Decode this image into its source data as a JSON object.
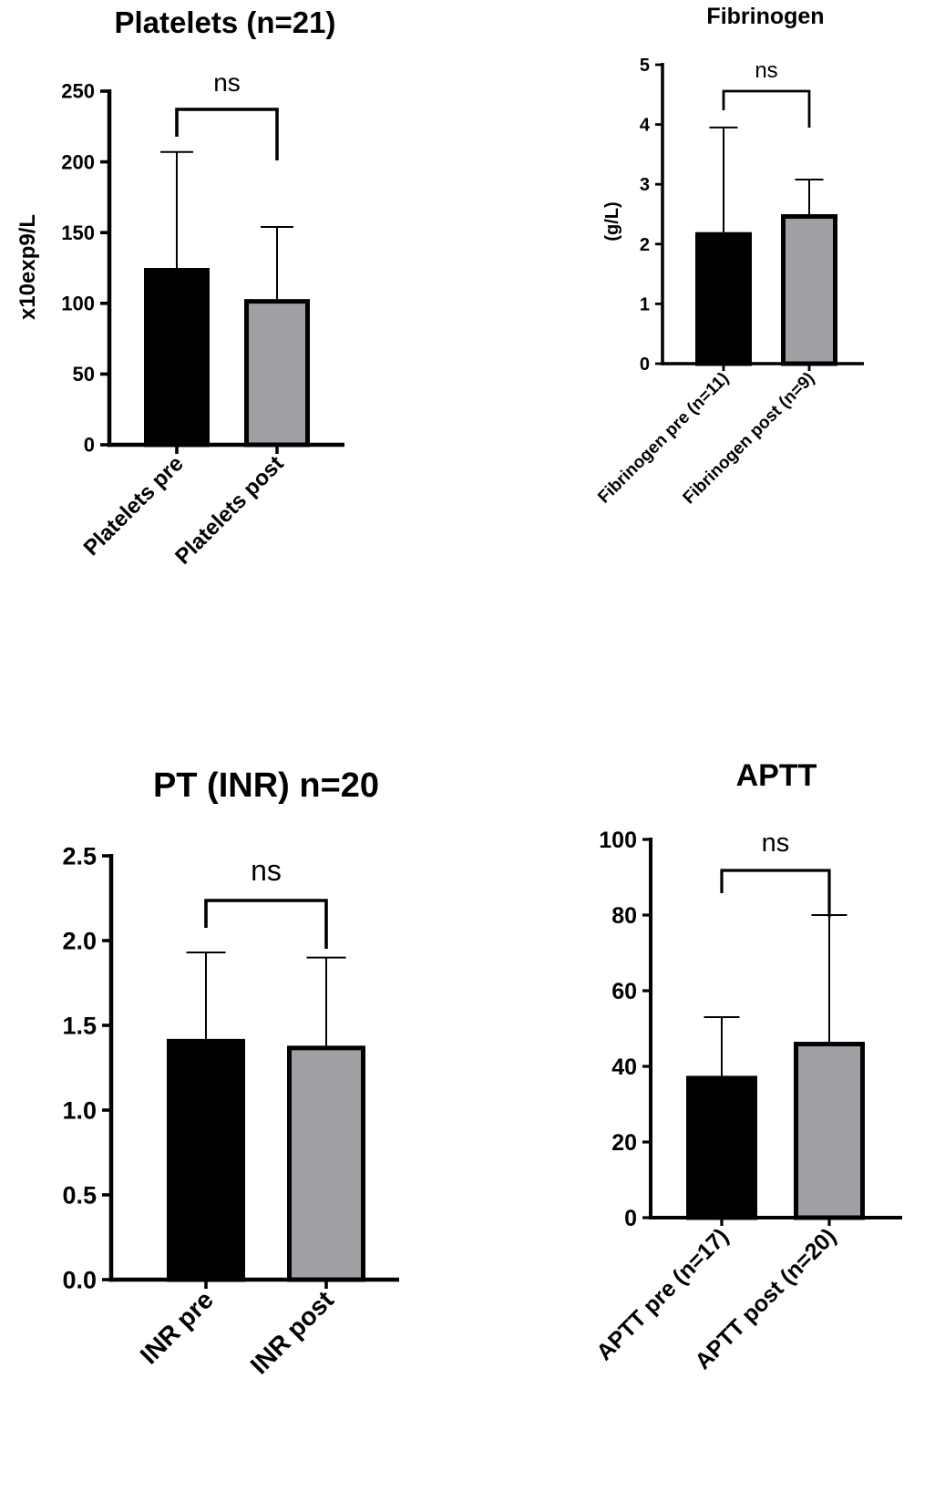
{
  "colors": {
    "pre": "#000000",
    "post": "#a0a0a4",
    "axis": "#000000"
  },
  "chart_data": [
    {
      "type": "bar",
      "title": "Platelets (n=21)",
      "ylabel": "x10exp9/L",
      "xlabel": "",
      "ylim": [
        0,
        250
      ],
      "yticks": [
        "0",
        "50",
        "100",
        "150",
        "200",
        "250"
      ],
      "yticks_values": [
        0,
        50,
        100,
        150,
        200,
        250
      ],
      "categories": [
        "Platelets pre",
        "Platelets post"
      ],
      "values": [
        125,
        103
      ],
      "errors_upper": [
        207,
        154
      ],
      "significance": "ns"
    },
    {
      "type": "bar",
      "title": "Fibrinogen",
      "ylabel": "(g/L)",
      "xlabel": "",
      "ylim": [
        0,
        5
      ],
      "yticks": [
        "0",
        "1",
        "2",
        "3",
        "4",
        "5"
      ],
      "yticks_values": [
        0,
        1,
        2,
        3,
        4,
        5
      ],
      "categories": [
        "Fibrinogen pre (n=11)",
        "Fibrinogen post (n=9)"
      ],
      "values": [
        2.2,
        2.5
      ],
      "errors_upper": [
        3.95,
        3.08
      ],
      "significance": "ns"
    },
    {
      "type": "bar",
      "title": "PT (INR) n=20",
      "ylabel": "",
      "xlabel": "",
      "ylim": [
        0,
        2.5
      ],
      "yticks": [
        "0.0",
        "0.5",
        "1.0",
        "1.5",
        "2.0",
        "2.5"
      ],
      "yticks_values": [
        0,
        0.5,
        1,
        1.5,
        2,
        2.5
      ],
      "categories": [
        "INR pre",
        "INR post"
      ],
      "values": [
        1.42,
        1.38
      ],
      "errors_upper": [
        1.93,
        1.9
      ],
      "significance": "ns"
    },
    {
      "type": "bar",
      "title": "APTT",
      "ylabel": "",
      "xlabel": "",
      "ylim": [
        0,
        100
      ],
      "yticks": [
        "0",
        "20",
        "40",
        "60",
        "80",
        "100"
      ],
      "yticks_values": [
        0,
        20,
        40,
        60,
        80,
        100
      ],
      "categories": [
        "APTT pre (n=17)",
        "APTT post (n=20)"
      ],
      "values": [
        37.5,
        46.5
      ],
      "errors_upper": [
        53,
        80
      ],
      "significance": "ns"
    }
  ]
}
